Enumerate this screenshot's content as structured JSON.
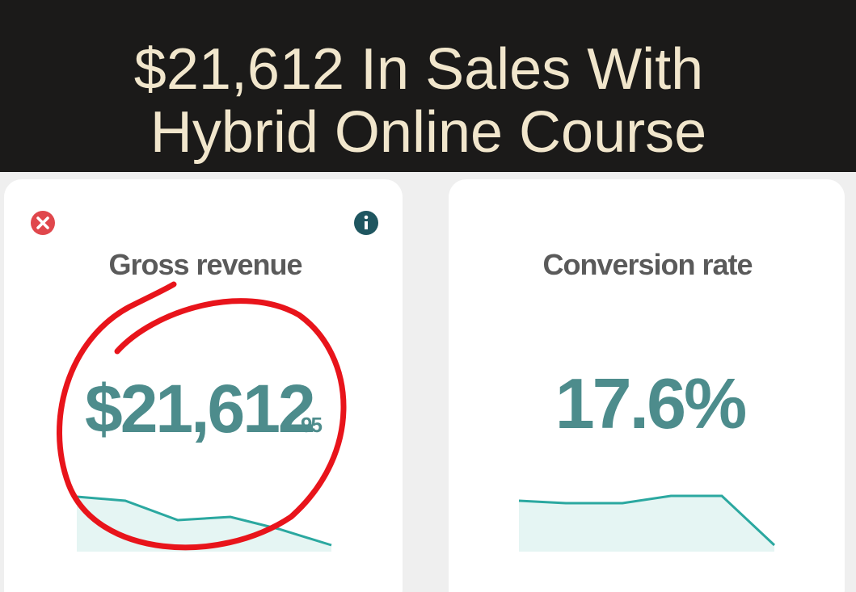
{
  "header": {
    "title_lines": [
      "$21,612 In Sales With",
      "Hybrid Online Course"
    ]
  },
  "cards": [
    {
      "title": "Gross revenue",
      "value": "$21,612",
      "cents": "95"
    },
    {
      "title": "Conversion rate",
      "value": "17.6%"
    }
  ]
}
